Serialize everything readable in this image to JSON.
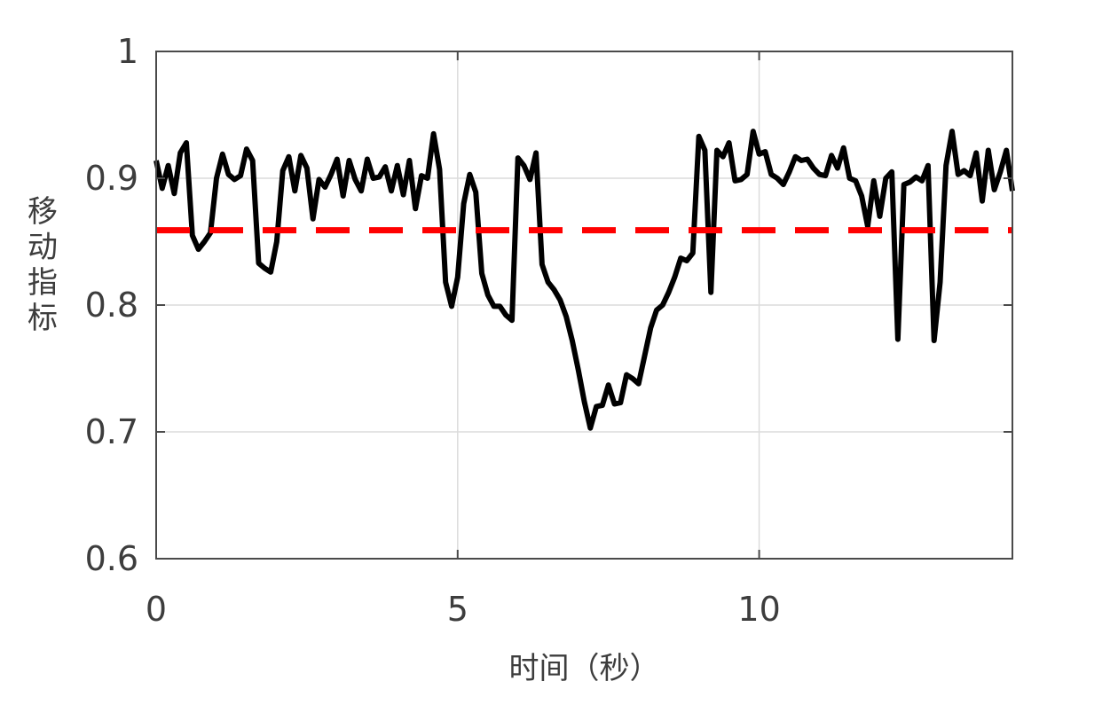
{
  "chart_data": {
    "type": "line",
    "title": "",
    "xlabel": "时间（秒）",
    "ylabel": "移动指标",
    "xlim": [
      0,
      14.2
    ],
    "ylim": [
      0.6,
      1.0
    ],
    "xticks": [
      0,
      5,
      10
    ],
    "yticks": [
      0.6,
      0.7,
      0.8,
      0.9,
      1.0
    ],
    "xtick_labels": [
      "0",
      "5",
      "10"
    ],
    "ytick_labels": [
      "0.6",
      "0.7",
      "0.8",
      "0.9",
      "1"
    ],
    "grid": true,
    "series": [
      {
        "style": "solid",
        "color": "#000000",
        "x": [
          0,
          0.1,
          0.2,
          0.3,
          0.4,
          0.5,
          0.6,
          0.7,
          0.8,
          0.9,
          1.0,
          1.1,
          1.2,
          1.3,
          1.4,
          1.5,
          1.6,
          1.7,
          1.8,
          1.9,
          2.0,
          2.1,
          2.2,
          2.3,
          2.4,
          2.5,
          2.6,
          2.7,
          2.8,
          2.9,
          3.0,
          3.1,
          3.2,
          3.3,
          3.4,
          3.5,
          3.6,
          3.7,
          3.8,
          3.9,
          4.0,
          4.1,
          4.2,
          4.3,
          4.4,
          4.5,
          4.6,
          4.7,
          4.8,
          4.9,
          5.0,
          5.1,
          5.2,
          5.3,
          5.4,
          5.5,
          5.6,
          5.7,
          5.8,
          5.9,
          6.0,
          6.1,
          6.2,
          6.3,
          6.4,
          6.5,
          6.6,
          6.7,
          6.8,
          6.9,
          7.0,
          7.1,
          7.2,
          7.3,
          7.4,
          7.5,
          7.6,
          7.7,
          7.8,
          7.9,
          8.0,
          8.1,
          8.2,
          8.3,
          8.4,
          8.5,
          8.6,
          8.7,
          8.8,
          8.9,
          9.0,
          9.1,
          9.2,
          9.3,
          9.4,
          9.5,
          9.6,
          9.7,
          9.8,
          9.9,
          10.0,
          10.1,
          10.2,
          10.3,
          10.4,
          10.5,
          10.6,
          10.7,
          10.8,
          10.9,
          11.0,
          11.1,
          11.2,
          11.3,
          11.4,
          11.5,
          11.6,
          11.7,
          11.8,
          11.9,
          12.0,
          12.1,
          12.2,
          12.3,
          12.4,
          12.5,
          12.6,
          12.7,
          12.8,
          12.9,
          13.0,
          13.1,
          13.2,
          13.3,
          13.4,
          13.5,
          13.6,
          13.7,
          13.8,
          13.9,
          14.0,
          14.1,
          14.2
        ],
        "y": [
          0.914,
          0.892,
          0.91,
          0.888,
          0.92,
          0.928,
          0.855,
          0.844,
          0.85,
          0.857,
          0.9,
          0.919,
          0.903,
          0.899,
          0.902,
          0.923,
          0.914,
          0.833,
          0.829,
          0.826,
          0.85,
          0.906,
          0.917,
          0.89,
          0.918,
          0.908,
          0.868,
          0.899,
          0.893,
          0.903,
          0.915,
          0.886,
          0.914,
          0.899,
          0.89,
          0.915,
          0.9,
          0.901,
          0.909,
          0.89,
          0.91,
          0.887,
          0.914,
          0.876,
          0.902,
          0.9,
          0.935,
          0.907,
          0.818,
          0.799,
          0.822,
          0.88,
          0.903,
          0.889,
          0.825,
          0.808,
          0.799,
          0.799,
          0.792,
          0.788,
          0.916,
          0.91,
          0.899,
          0.92,
          0.832,
          0.818,
          0.812,
          0.804,
          0.791,
          0.772,
          0.749,
          0.724,
          0.703,
          0.72,
          0.721,
          0.737,
          0.722,
          0.723,
          0.745,
          0.742,
          0.738,
          0.76,
          0.782,
          0.796,
          0.8,
          0.81,
          0.822,
          0.837,
          0.835,
          0.841,
          0.933,
          0.922,
          0.81,
          0.922,
          0.917,
          0.928,
          0.898,
          0.899,
          0.903,
          0.937,
          0.919,
          0.921,
          0.903,
          0.9,
          0.895,
          0.905,
          0.917,
          0.914,
          0.915,
          0.908,
          0.903,
          0.902,
          0.918,
          0.908,
          0.924,
          0.9,
          0.898,
          0.886,
          0.862,
          0.898,
          0.87,
          0.9,
          0.905,
          0.773,
          0.895,
          0.897,
          0.901,
          0.898,
          0.91,
          0.772,
          0.818,
          0.91,
          0.937,
          0.903,
          0.906,
          0.902,
          0.92,
          0.882,
          0.922,
          0.891,
          0.905,
          0.922,
          0.89
        ]
      },
      {
        "style": "dashed",
        "color": "#ff0000",
        "x": [
          0,
          14.2
        ],
        "y": [
          0.859,
          0.859
        ]
      }
    ]
  }
}
